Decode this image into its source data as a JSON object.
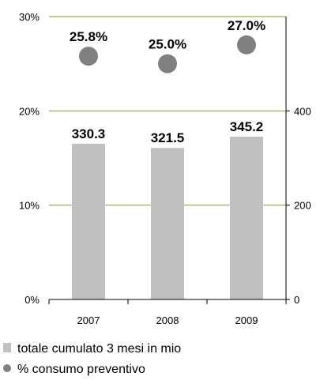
{
  "chart_data": {
    "type": "bar",
    "categories": [
      "2007",
      "2008",
      "2009"
    ],
    "series": [
      {
        "name": "totale cumulato 3 mesi in mio",
        "kind": "bar",
        "axis": "right",
        "values": [
          330.3,
          321.5,
          345.2
        ],
        "labels": [
          "330.3",
          "321.5",
          "345.2"
        ],
        "color": "#c0c0c0"
      },
      {
        "name": "% consumo preventivo",
        "kind": "point",
        "axis": "left",
        "values": [
          25.8,
          25.0,
          27.0
        ],
        "labels": [
          "25.8%",
          "25.0%",
          "27.0%"
        ],
        "color": "#808080"
      }
    ],
    "y_left": {
      "range": [
        0,
        30
      ],
      "ticks": [
        0,
        10,
        20,
        30
      ],
      "tick_labels": [
        "0%",
        "10%",
        "20%",
        "30%"
      ]
    },
    "y_right": {
      "range": [
        0,
        600
      ],
      "ticks": [
        0,
        200,
        400
      ],
      "tick_labels": [
        "0",
        "200",
        "400"
      ]
    },
    "grid": true,
    "grid_color": "#8a9a2a",
    "legend_position": "bottom-left",
    "legend": [
      {
        "label": "totale cumulato 3 mesi in mio",
        "marker": "square",
        "color": "#c0c0c0"
      },
      {
        "label": "% consumo preventivo",
        "marker": "circle",
        "color": "#808080"
      }
    ]
  }
}
